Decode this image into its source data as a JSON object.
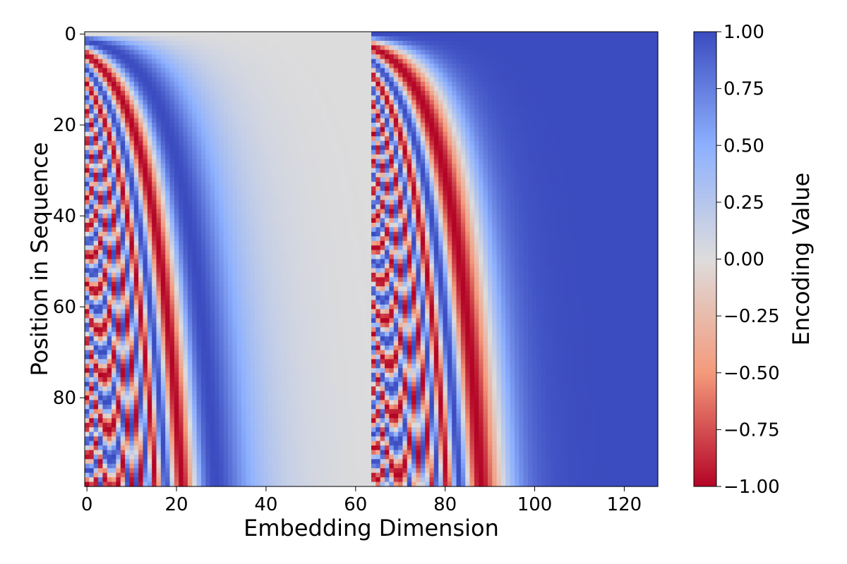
{
  "chart_data": {
    "type": "heatmap",
    "title": "",
    "xlabel": "Embedding Dimension",
    "ylabel": "Position in Sequence",
    "colorbar_label": "Encoding Value",
    "colormap": "coolwarm",
    "colormap_stops": [
      {
        "v": -1.0,
        "color": "#b40426"
      },
      {
        "v": -0.5,
        "color": "#f49a7b"
      },
      {
        "v": 0.0,
        "color": "#dddcdc"
      },
      {
        "v": 0.5,
        "color": "#8db0fe"
      },
      {
        "v": 1.0,
        "color": "#3b4cc0"
      }
    ],
    "rows": 100,
    "cols": 128,
    "xlim": [
      0,
      127
    ],
    "ylim": [
      0,
      99
    ],
    "y_inverted": true,
    "vmin": -1.0,
    "vmax": 1.0,
    "encoding": "sinusoidal positional encoding: dims 0-63 = sin(pos / 10000^(i/64)), dims 64-127 = cos(pos / 10000^((i-64)/64))",
    "x_ticks": [
      0,
      20,
      40,
      60,
      80,
      100,
      120
    ],
    "x_tick_labels": [
      "0",
      "20",
      "40",
      "60",
      "80",
      "100",
      "120"
    ],
    "y_ticks": [
      0,
      20,
      40,
      60,
      80
    ],
    "y_tick_labels": [
      "0",
      "20",
      "40",
      "60",
      "80"
    ],
    "colorbar_ticks": [
      1.0,
      0.75,
      0.5,
      0.25,
      0.0,
      -0.25,
      -0.5,
      -0.75,
      -1.0
    ],
    "colorbar_tick_labels": [
      "1.00",
      "0.75",
      "0.50",
      "0.25",
      "0.00",
      "−0.25",
      "−0.50",
      "−0.75",
      "−1.00"
    ],
    "grid": false,
    "legend": "colorbar-right"
  }
}
